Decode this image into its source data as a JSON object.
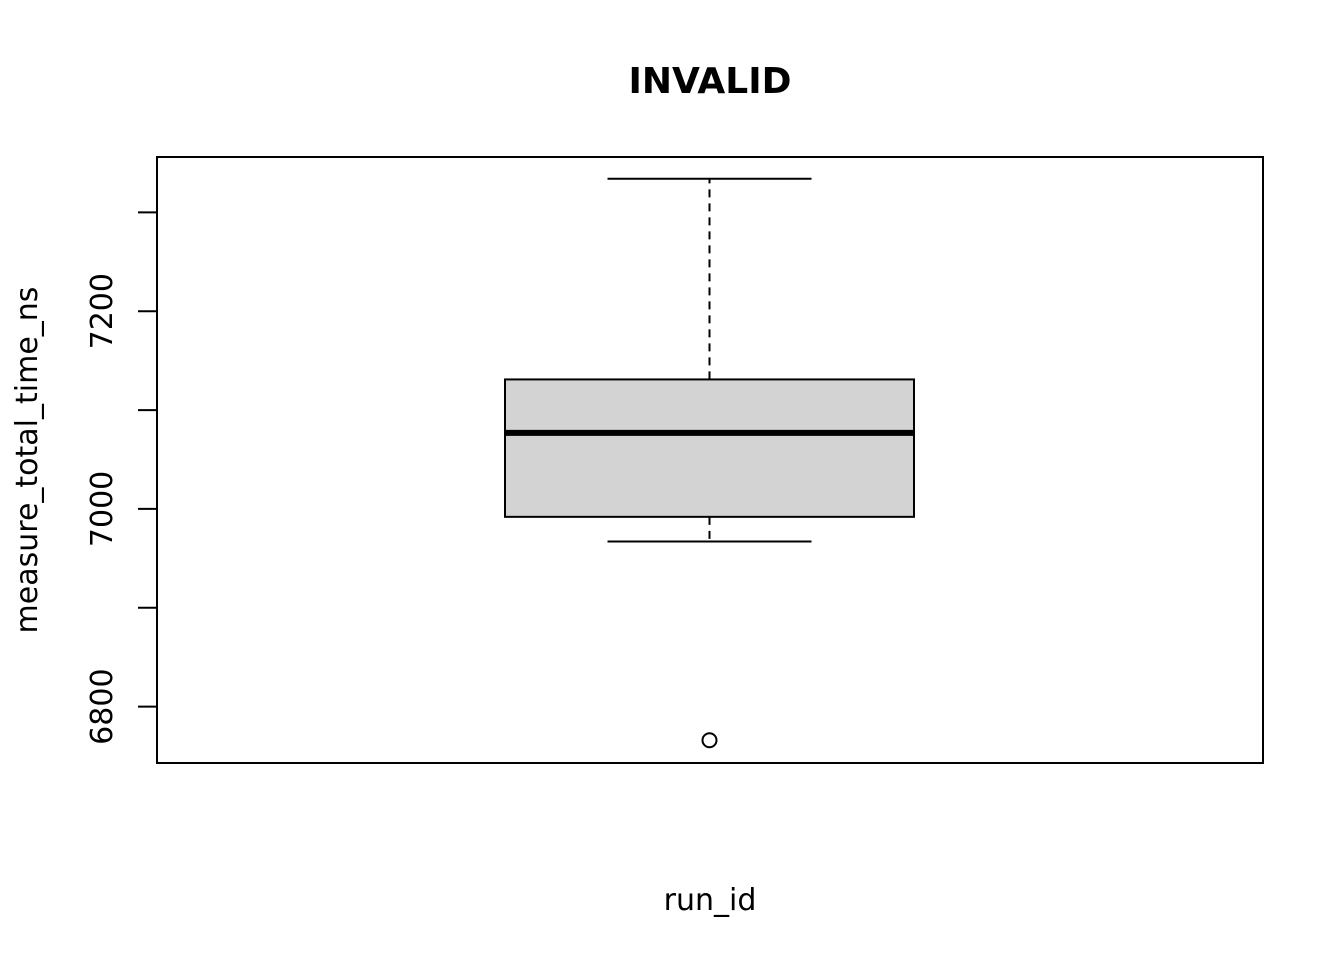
{
  "chart_data": {
    "type": "boxplot",
    "title": "INVALID",
    "xlabel": "run_id",
    "ylabel": "measure_total_time_ns",
    "ylim": [
      6743,
      7356
    ],
    "y_ticks": [
      6800,
      6900,
      7000,
      7100,
      7200,
      7300
    ],
    "y_tick_labels": [
      "6800",
      "",
      "7000",
      "",
      "7200",
      ""
    ],
    "boxes": [
      {
        "whisker_low": 6967,
        "q1": 6992,
        "median": 7077,
        "q3": 7131,
        "whisker_high": 7334,
        "outliers": [
          6766
        ]
      }
    ],
    "colors": {
      "box_fill": "#d3d3d3",
      "stroke": "#000000"
    },
    "grid": false,
    "legend": "none"
  }
}
